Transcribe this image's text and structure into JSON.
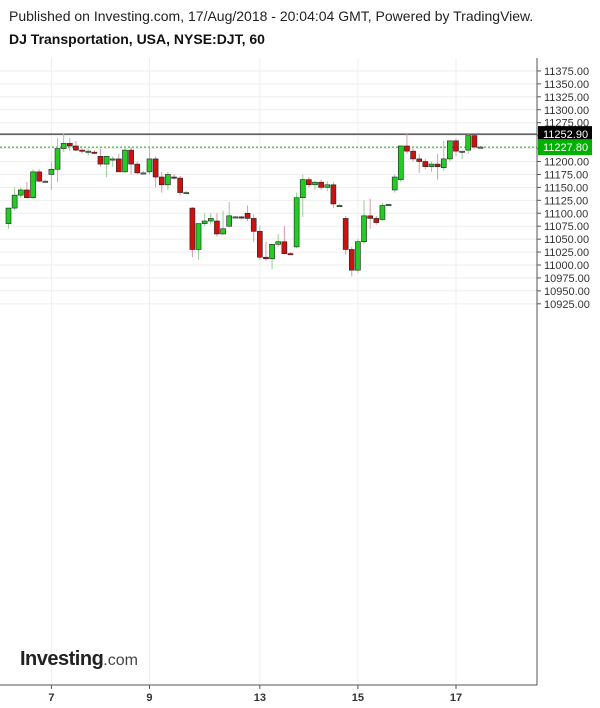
{
  "header": {
    "published": "Published on Investing.com, 17/Aug/2018 - 20:04:04 GMT, Powered by TradingView.",
    "title": "DJ Transportation, USA, NYSE:DJT, 60"
  },
  "logo": {
    "main": "Investing",
    "suffix": ".com"
  },
  "colors": {
    "up": "#22cc22",
    "down": "#cc1111",
    "wick_up": "#99cc99",
    "wick_down": "#dd99aa",
    "line_black": "#000000",
    "line_green": "#00b000",
    "grid": "#eeeeee"
  },
  "chart_data": {
    "type": "candlestick",
    "title": "DJ Transportation, USA, NYSE:DJT, 60",
    "ylim": [
      10900,
      11400
    ],
    "y_ticks": [
      "10925.00",
      "10950.00",
      "10975.00",
      "11000.00",
      "11025.00",
      "11050.00",
      "11075.00",
      "11100.00",
      "11125.00",
      "11150.00",
      "11175.00",
      "11200.00",
      "11225.00",
      "11250.00",
      "11275.00",
      "11300.00",
      "11325.00",
      "11350.00",
      "11375.00"
    ],
    "x_labels": [
      "7",
      "9",
      "13",
      "15",
      "17"
    ],
    "x_label_index": [
      7,
      23,
      41,
      57,
      73
    ],
    "reference_lines": [
      {
        "value": 11252.9,
        "label": "11252.90",
        "style": "solid",
        "color": "#000000"
      },
      {
        "value": 11227.8,
        "label": "11227.80",
        "style": "dotted",
        "color": "#00b000"
      }
    ],
    "grid": true,
    "candles": [
      {
        "o": 11080,
        "h": 11110,
        "l": 11070,
        "c": 11110
      },
      {
        "o": 11110,
        "h": 11150,
        "l": 11105,
        "c": 11135
      },
      {
        "o": 11135,
        "h": 11150,
        "l": 11130,
        "c": 11145
      },
      {
        "o": 11145,
        "h": 11160,
        "l": 11130,
        "c": 11130
      },
      {
        "o": 11130,
        "h": 11185,
        "l": 11128,
        "c": 11180
      },
      {
        "o": 11180,
        "h": 11185,
        "l": 11160,
        "c": 11162
      },
      {
        "o": 11162,
        "h": 11165,
        "l": 11160,
        "c": 11162
      },
      {
        "o": 11175,
        "h": 11200,
        "l": 11145,
        "c": 11185
      },
      {
        "o": 11185,
        "h": 11245,
        "l": 11160,
        "c": 11225
      },
      {
        "o": 11225,
        "h": 11255,
        "l": 11218,
        "c": 11235
      },
      {
        "o": 11235,
        "h": 11245,
        "l": 11220,
        "c": 11230
      },
      {
        "o": 11230,
        "h": 11240,
        "l": 11220,
        "c": 11222
      },
      {
        "o": 11222,
        "h": 11225,
        "l": 11215,
        "c": 11220
      },
      {
        "o": 11220,
        "h": 11225,
        "l": 11212,
        "c": 11220
      },
      {
        "o": 11218,
        "h": 11222,
        "l": 11214,
        "c": 11216
      },
      {
        "o": 11210,
        "h": 11225,
        "l": 11190,
        "c": 11195
      },
      {
        "o": 11195,
        "h": 11210,
        "l": 11170,
        "c": 11210
      },
      {
        "o": 11205,
        "h": 11210,
        "l": 11190,
        "c": 11205
      },
      {
        "o": 11205,
        "h": 11215,
        "l": 11180,
        "c": 11180
      },
      {
        "o": 11180,
        "h": 11230,
        "l": 11178,
        "c": 11222
      },
      {
        "o": 11222,
        "h": 11228,
        "l": 11175,
        "c": 11195
      },
      {
        "o": 11195,
        "h": 11200,
        "l": 11175,
        "c": 11178
      },
      {
        "o": 11178,
        "h": 11182,
        "l": 11175,
        "c": 11178
      },
      {
        "o": 11180,
        "h": 11228,
        "l": 11175,
        "c": 11205
      },
      {
        "o": 11205,
        "h": 11210,
        "l": 11150,
        "c": 11170
      },
      {
        "o": 11170,
        "h": 11180,
        "l": 11140,
        "c": 11155
      },
      {
        "o": 11155,
        "h": 11180,
        "l": 11145,
        "c": 11175
      },
      {
        "o": 11170,
        "h": 11176,
        "l": 11165,
        "c": 11168
      },
      {
        "o": 11168,
        "h": 11172,
        "l": 11135,
        "c": 11140
      },
      {
        "o": 11140,
        "h": 11143,
        "l": 11138,
        "c": 11140
      },
      {
        "o": 11110,
        "h": 11112,
        "l": 11015,
        "c": 11030
      },
      {
        "o": 11030,
        "h": 11080,
        "l": 11010,
        "c": 11080
      },
      {
        "o": 11080,
        "h": 11100,
        "l": 11075,
        "c": 11085
      },
      {
        "o": 11085,
        "h": 11100,
        "l": 11078,
        "c": 11090
      },
      {
        "o": 11085,
        "h": 11100,
        "l": 11055,
        "c": 11060
      },
      {
        "o": 11060,
        "h": 11105,
        "l": 11058,
        "c": 11070
      },
      {
        "o": 11075,
        "h": 11122,
        "l": 11073,
        "c": 11095
      },
      {
        "o": 11093,
        "h": 11095,
        "l": 11091,
        "c": 11093
      },
      {
        "o": 11093,
        "h": 11095,
        "l": 11088,
        "c": 11092
      },
      {
        "o": 11100,
        "h": 11115,
        "l": 11085,
        "c": 11090
      },
      {
        "o": 11090,
        "h": 11098,
        "l": 11045,
        "c": 11065
      },
      {
        "o": 11065,
        "h": 11075,
        "l": 11010,
        "c": 11015
      },
      {
        "o": 11015,
        "h": 11045,
        "l": 11008,
        "c": 11012
      },
      {
        "o": 11012,
        "h": 11040,
        "l": 10992,
        "c": 11040
      },
      {
        "o": 11040,
        "h": 11060,
        "l": 11035,
        "c": 11045
      },
      {
        "o": 11045,
        "h": 11075,
        "l": 11020,
        "c": 11022
      },
      {
        "o": 11022,
        "h": 11025,
        "l": 11019,
        "c": 11021
      },
      {
        "o": 11035,
        "h": 11140,
        "l": 11033,
        "c": 11130
      },
      {
        "o": 11130,
        "h": 11175,
        "l": 11093,
        "c": 11165
      },
      {
        "o": 11165,
        "h": 11170,
        "l": 11150,
        "c": 11155
      },
      {
        "o": 11155,
        "h": 11162,
        "l": 11145,
        "c": 11160
      },
      {
        "o": 11160,
        "h": 11165,
        "l": 11145,
        "c": 11150
      },
      {
        "o": 11150,
        "h": 11162,
        "l": 11143,
        "c": 11155
      },
      {
        "o": 11155,
        "h": 11160,
        "l": 11110,
        "c": 11118
      },
      {
        "o": 11115,
        "h": 11118,
        "l": 11112,
        "c": 11115
      },
      {
        "o": 11090,
        "h": 11095,
        "l": 11020,
        "c": 11030
      },
      {
        "o": 11030,
        "h": 11035,
        "l": 10978,
        "c": 10990
      },
      {
        "o": 10990,
        "h": 11050,
        "l": 10985,
        "c": 11045
      },
      {
        "o": 11045,
        "h": 11125,
        "l": 11040,
        "c": 11095
      },
      {
        "o": 11095,
        "h": 11128,
        "l": 11070,
        "c": 11090
      },
      {
        "o": 11090,
        "h": 11095,
        "l": 11078,
        "c": 11082
      },
      {
        "o": 11088,
        "h": 11120,
        "l": 11085,
        "c": 11115
      },
      {
        "o": 11117,
        "h": 11118,
        "l": 11116,
        "c": 11117
      },
      {
        "o": 11145,
        "h": 11175,
        "l": 11140,
        "c": 11170
      },
      {
        "o": 11165,
        "h": 11230,
        "l": 11160,
        "c": 11230
      },
      {
        "o": 11230,
        "h": 11255,
        "l": 11215,
        "c": 11220
      },
      {
        "o": 11220,
        "h": 11225,
        "l": 11200,
        "c": 11205
      },
      {
        "o": 11205,
        "h": 11215,
        "l": 11178,
        "c": 11200
      },
      {
        "o": 11200,
        "h": 11205,
        "l": 11185,
        "c": 11190
      },
      {
        "o": 11190,
        "h": 11200,
        "l": 11180,
        "c": 11195
      },
      {
        "o": 11195,
        "h": 11215,
        "l": 11165,
        "c": 11190
      },
      {
        "o": 11188,
        "h": 11240,
        "l": 11182,
        "c": 11205
      },
      {
        "o": 11205,
        "h": 11240,
        "l": 11200,
        "c": 11240
      },
      {
        "o": 11240,
        "h": 11245,
        "l": 11210,
        "c": 11220
      },
      {
        "o": 11218,
        "h": 11220,
        "l": 11205,
        "c": 11220
      },
      {
        "o": 11222,
        "h": 11253,
        "l": 11215,
        "c": 11250
      },
      {
        "o": 11250,
        "h": 11252,
        "l": 11225,
        "c": 11228
      },
      {
        "o": 11228,
        "h": 11230,
        "l": 11226,
        "c": 11228
      }
    ]
  }
}
